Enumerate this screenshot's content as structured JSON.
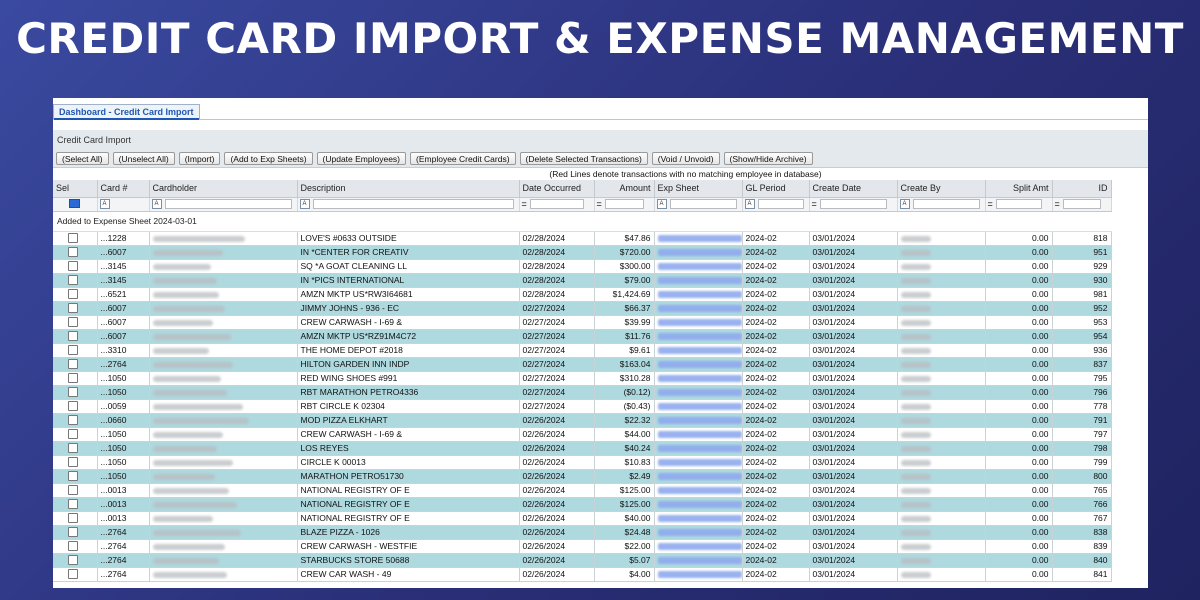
{
  "banner": {
    "title": "CREDIT CARD IMPORT & EXPENSE MANAGEMENT"
  },
  "app": {
    "tab_label": "Dashboard - Credit Card Import",
    "panel_title": "Credit Card Import",
    "toolbar": [
      "(Select All)",
      "(Unselect All)",
      "(Import)",
      "(Add to Exp Sheets)",
      "(Update Employees)",
      "(Employee Credit Cards)",
      "(Delete Selected Transactions)",
      "(Void / Unvoid)",
      "(Show/Hide Archive)"
    ],
    "note": "(Red Lines denote transactions with no matching employee in database)",
    "columns": [
      "Sel",
      "Card #",
      "Cardholder",
      "Description",
      "Date Occurred",
      "Amount",
      "Exp Sheet",
      "GL Period",
      "Create Date",
      "Create By",
      "Split Amt",
      "ID"
    ],
    "group_label": "Added to Expense Sheet 2024-03-01",
    "rows": [
      {
        "card": "...1228",
        "desc": "LOVE'S #0633 OUTSIDE",
        "date": "02/28/2024",
        "amount": "$47.86",
        "gl": "2024-02",
        "created": "03/01/2024",
        "split": "0.00",
        "id": "818"
      },
      {
        "card": "...6007",
        "desc": "IN *CENTER FOR CREATIV",
        "date": "02/28/2024",
        "amount": "$720.00",
        "gl": "2024-02",
        "created": "03/01/2024",
        "split": "0.00",
        "id": "951"
      },
      {
        "card": "...3145",
        "desc": "SQ *A GOAT CLEANING LL",
        "date": "02/28/2024",
        "amount": "$300.00",
        "gl": "2024-02",
        "created": "03/01/2024",
        "split": "0.00",
        "id": "929"
      },
      {
        "card": "...3145",
        "desc": "IN *PICS INTERNATIONAL",
        "date": "02/28/2024",
        "amount": "$79.00",
        "gl": "2024-02",
        "created": "03/01/2024",
        "split": "0.00",
        "id": "930"
      },
      {
        "card": "...6521",
        "desc": "AMZN MKTP US*RW3I64681",
        "date": "02/28/2024",
        "amount": "$1,424.69",
        "gl": "2024-02",
        "created": "03/01/2024",
        "split": "0.00",
        "id": "981"
      },
      {
        "card": "...6007",
        "desc": "JIMMY JOHNS - 936 - EC",
        "date": "02/27/2024",
        "amount": "$66.37",
        "gl": "2024-02",
        "created": "03/01/2024",
        "split": "0.00",
        "id": "952"
      },
      {
        "card": "...6007",
        "desc": "CREW CARWASH - I-69 &",
        "date": "02/27/2024",
        "amount": "$39.99",
        "gl": "2024-02",
        "created": "03/01/2024",
        "split": "0.00",
        "id": "953"
      },
      {
        "card": "...6007",
        "desc": "AMZN MKTP US*RZ91M4C72",
        "date": "02/27/2024",
        "amount": "$11.76",
        "gl": "2024-02",
        "created": "03/01/2024",
        "split": "0.00",
        "id": "954"
      },
      {
        "card": "...3310",
        "desc": "THE HOME DEPOT #2018",
        "date": "02/27/2024",
        "amount": "$9.61",
        "gl": "2024-02",
        "created": "03/01/2024",
        "split": "0.00",
        "id": "936"
      },
      {
        "card": "...2764",
        "desc": "HILTON GARDEN INN INDP",
        "date": "02/27/2024",
        "amount": "$163.04",
        "gl": "2024-02",
        "created": "03/01/2024",
        "split": "0.00",
        "id": "837"
      },
      {
        "card": "...1050",
        "desc": "RED WING SHOES #991",
        "date": "02/27/2024",
        "amount": "$310.28",
        "gl": "2024-02",
        "created": "03/01/2024",
        "split": "0.00",
        "id": "795"
      },
      {
        "card": "...1050",
        "desc": "RBT MARATHON PETRO4336",
        "date": "02/27/2024",
        "amount": "($0.12)",
        "gl": "2024-02",
        "created": "03/01/2024",
        "split": "0.00",
        "id": "796"
      },
      {
        "card": "...0059",
        "desc": "RBT CIRCLE K 02304",
        "date": "02/27/2024",
        "amount": "($0.43)",
        "gl": "2024-02",
        "created": "03/01/2024",
        "split": "0.00",
        "id": "778"
      },
      {
        "card": "...0660",
        "desc": "MOD PIZZA ELKHART",
        "date": "02/26/2024",
        "amount": "$22.32",
        "gl": "2024-02",
        "created": "03/01/2024",
        "split": "0.00",
        "id": "791"
      },
      {
        "card": "...1050",
        "desc": "CREW CARWASH - I-69 &",
        "date": "02/26/2024",
        "amount": "$44.00",
        "gl": "2024-02",
        "created": "03/01/2024",
        "split": "0.00",
        "id": "797"
      },
      {
        "card": "...1050",
        "desc": "LOS REYES",
        "date": "02/26/2024",
        "amount": "$40.24",
        "gl": "2024-02",
        "created": "03/01/2024",
        "split": "0.00",
        "id": "798"
      },
      {
        "card": "...1050",
        "desc": "CIRCLE K 00013",
        "date": "02/26/2024",
        "amount": "$10.83",
        "gl": "2024-02",
        "created": "03/01/2024",
        "split": "0.00",
        "id": "799"
      },
      {
        "card": "...1050",
        "desc": "MARATHON PETRO51730",
        "date": "02/26/2024",
        "amount": "$2.49",
        "gl": "2024-02",
        "created": "03/01/2024",
        "split": "0.00",
        "id": "800"
      },
      {
        "card": "...0013",
        "desc": "NATIONAL REGISTRY OF E",
        "date": "02/26/2024",
        "amount": "$125.00",
        "gl": "2024-02",
        "created": "03/01/2024",
        "split": "0.00",
        "id": "765"
      },
      {
        "card": "...0013",
        "desc": "NATIONAL REGISTRY OF E",
        "date": "02/26/2024",
        "amount": "$125.00",
        "gl": "2024-02",
        "created": "03/01/2024",
        "split": "0.00",
        "id": "766"
      },
      {
        "card": "...0013",
        "desc": "NATIONAL REGISTRY OF E",
        "date": "02/26/2024",
        "amount": "$40.00",
        "gl": "2024-02",
        "created": "03/01/2024",
        "split": "0.00",
        "id": "767"
      },
      {
        "card": "...2764",
        "desc": "BLAZE PIZZA - 1026",
        "date": "02/26/2024",
        "amount": "$24.48",
        "gl": "2024-02",
        "created": "03/01/2024",
        "split": "0.00",
        "id": "838"
      },
      {
        "card": "...2764",
        "desc": "CREW CARWASH - WESTFIE",
        "date": "02/26/2024",
        "amount": "$22.00",
        "gl": "2024-02",
        "created": "03/01/2024",
        "split": "0.00",
        "id": "839"
      },
      {
        "card": "...2764",
        "desc": "STARBUCKS STORE 50688",
        "date": "02/26/2024",
        "amount": "$5.07",
        "gl": "2024-02",
        "created": "03/01/2024",
        "split": "0.00",
        "id": "840"
      },
      {
        "card": "...2764",
        "desc": "CREW CAR WASH - 49",
        "date": "02/26/2024",
        "amount": "$4.00",
        "gl": "2024-02",
        "created": "03/01/2024",
        "split": "0.00",
        "id": "841"
      }
    ]
  }
}
